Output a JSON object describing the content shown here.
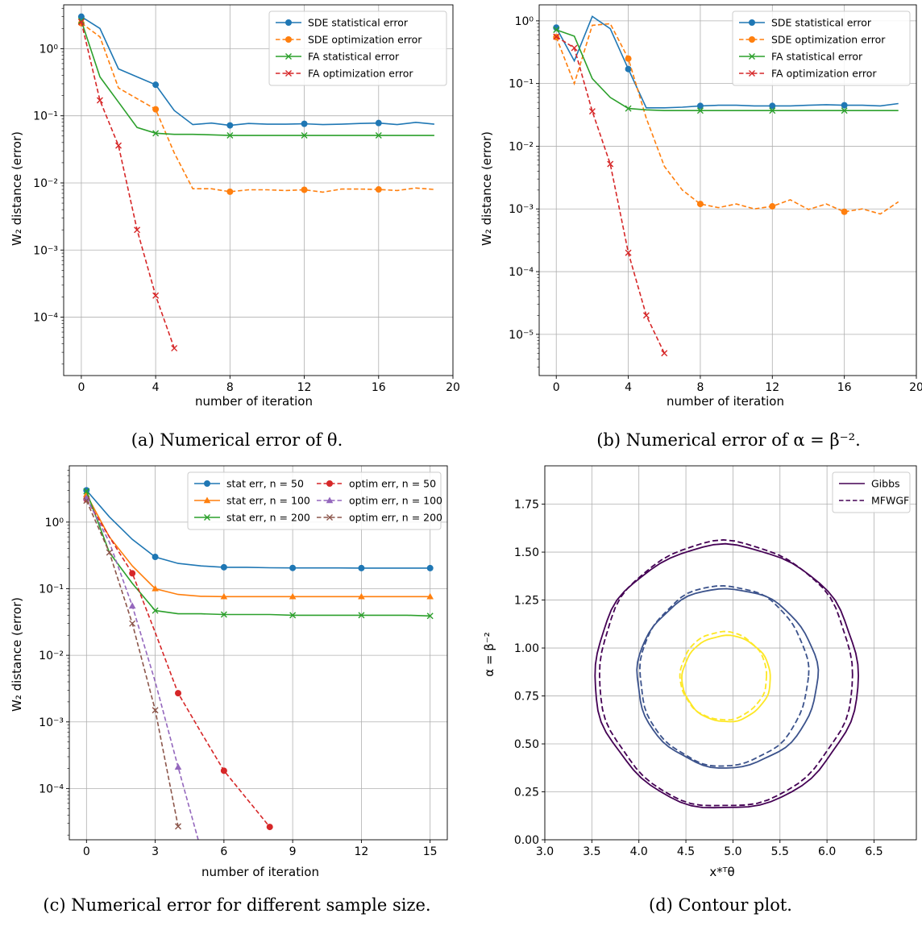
{
  "chart_data": [
    {
      "id": "a",
      "type": "line",
      "caption": "(a) Numerical error of θ.",
      "xlabel": "number of iteration",
      "ylabel": "W₂ distance (error)",
      "yscale": "log",
      "xlim": [
        -0.95,
        20
      ],
      "ylim": [
        1.35e-05,
        4.5
      ],
      "xticks": [
        0,
        4,
        8,
        12,
        16,
        20
      ],
      "yticks": [
        {
          "value": 0.0001,
          "label": "10⁻⁴"
        },
        {
          "value": 0.001,
          "label": "10⁻³"
        },
        {
          "value": 0.01,
          "label": "10⁻²"
        },
        {
          "value": 0.1,
          "label": "10⁻¹"
        },
        {
          "value": 1,
          "label": "10⁰"
        }
      ],
      "grid": true,
      "legend": {
        "position": "top-right",
        "columns": 1
      },
      "series": [
        {
          "name": "SDE statistical error",
          "color": "#1f77b4",
          "dash": "solid",
          "marker": "circle",
          "markevery": [
            0,
            4,
            8,
            12,
            16
          ],
          "x": [
            0,
            1,
            2,
            3,
            4,
            5,
            6,
            7,
            8,
            9,
            10,
            11,
            12,
            13,
            14,
            15,
            16,
            17,
            18,
            19
          ],
          "y": [
            3.0,
            2.0,
            0.5,
            0.38,
            0.29,
            0.12,
            0.074,
            0.078,
            0.072,
            0.077,
            0.075,
            0.075,
            0.076,
            0.074,
            0.075,
            0.077,
            0.078,
            0.074,
            0.08,
            0.075
          ]
        },
        {
          "name": "SDE optimization error",
          "color": "#ff7f0e",
          "dash": "dashed",
          "marker": "circle",
          "markevery": [
            0,
            4,
            8,
            12,
            16
          ],
          "x": [
            0,
            1,
            2,
            3,
            4,
            5,
            6,
            7,
            8,
            9,
            10,
            11,
            12,
            13,
            14,
            15,
            16,
            17,
            18,
            19
          ],
          "y": [
            2.4,
            1.5,
            0.26,
            0.18,
            0.125,
            0.028,
            0.0082,
            0.0082,
            0.0074,
            0.0079,
            0.0079,
            0.0077,
            0.0079,
            0.0073,
            0.0081,
            0.0081,
            0.008,
            0.0077,
            0.0084,
            0.008
          ]
        },
        {
          "name": "FA statistical error",
          "color": "#2ca02c",
          "dash": "solid",
          "marker": "x",
          "markevery": [
            0,
            4,
            8,
            12,
            16
          ],
          "x": [
            0,
            1,
            2,
            3,
            4,
            5,
            6,
            7,
            8,
            9,
            10,
            11,
            12,
            13,
            14,
            15,
            16,
            17,
            18,
            19
          ],
          "y": [
            2.6,
            0.38,
            0.16,
            0.067,
            0.055,
            0.053,
            0.053,
            0.052,
            0.051,
            0.051,
            0.051,
            0.051,
            0.051,
            0.051,
            0.051,
            0.051,
            0.051,
            0.051,
            0.051,
            0.051
          ]
        },
        {
          "name": "FA optimization error",
          "color": "#d62728",
          "dash": "dashed",
          "marker": "x",
          "markevery": "all",
          "x": [
            0,
            1,
            2,
            3,
            4,
            5
          ],
          "y": [
            2.5,
            0.17,
            0.036,
            0.002,
            0.00021,
            3.45e-05
          ]
        }
      ]
    },
    {
      "id": "b",
      "type": "line",
      "caption": "(b) Numerical error of α = β⁻².",
      "xlabel": "number of iteration",
      "ylabel": "W₂ distance (error)",
      "yscale": "log",
      "xlim": [
        -0.95,
        20
      ],
      "ylim": [
        2.2e-06,
        1.8
      ],
      "xticks": [
        0,
        4,
        8,
        12,
        16,
        20
      ],
      "yticks": [
        {
          "value": 1e-05,
          "label": "10⁻⁵"
        },
        {
          "value": 0.0001,
          "label": "10⁻⁴"
        },
        {
          "value": 0.001,
          "label": "10⁻³"
        },
        {
          "value": 0.01,
          "label": "10⁻²"
        },
        {
          "value": 0.1,
          "label": "10⁻¹"
        },
        {
          "value": 1,
          "label": "10⁰"
        }
      ],
      "grid": true,
      "legend": {
        "position": "top-right",
        "columns": 1
      },
      "series": [
        {
          "name": "SDE statistical error",
          "color": "#1f77b4",
          "dash": "solid",
          "marker": "circle",
          "markevery": [
            0,
            4,
            8,
            12,
            16
          ],
          "x": [
            0,
            1,
            2,
            3,
            4,
            5,
            6,
            7,
            8,
            9,
            10,
            11,
            12,
            13,
            14,
            15,
            16,
            17,
            18,
            19
          ],
          "y": [
            0.78,
            0.23,
            1.18,
            0.75,
            0.17,
            0.041,
            0.041,
            0.042,
            0.044,
            0.045,
            0.045,
            0.044,
            0.044,
            0.044,
            0.045,
            0.046,
            0.045,
            0.045,
            0.044,
            0.048
          ]
        },
        {
          "name": "SDE optimization error",
          "color": "#ff7f0e",
          "dash": "dashed",
          "marker": "circle",
          "markevery": [
            0,
            4,
            8,
            12,
            16
          ],
          "x": [
            0,
            1,
            2,
            3,
            4,
            5,
            6,
            7,
            8,
            9,
            10,
            11,
            12,
            13,
            14,
            15,
            16,
            17,
            18,
            19
          ],
          "y": [
            0.55,
            0.1,
            0.85,
            0.9,
            0.25,
            0.028,
            0.0048,
            0.002,
            0.0012,
            0.00105,
            0.0012,
            0.001,
            0.0011,
            0.0014,
            0.00098,
            0.0012,
            0.0009,
            0.001,
            0.00083,
            0.0013
          ]
        },
        {
          "name": "FA statistical error",
          "color": "#2ca02c",
          "dash": "solid",
          "marker": "x",
          "markevery": [
            0,
            4,
            8,
            12,
            16
          ],
          "x": [
            0,
            1,
            2,
            3,
            4,
            5,
            6,
            7,
            8,
            9,
            10,
            11,
            12,
            13,
            14,
            15,
            16,
            17,
            18,
            19
          ],
          "y": [
            0.72,
            0.57,
            0.12,
            0.06,
            0.04,
            0.038,
            0.037,
            0.037,
            0.037,
            0.037,
            0.037,
            0.037,
            0.037,
            0.037,
            0.037,
            0.037,
            0.037,
            0.037,
            0.037,
            0.037
          ]
        },
        {
          "name": "FA optimization error",
          "color": "#d62728",
          "dash": "dashed",
          "marker": "x",
          "markevery": "all",
          "x": [
            0,
            1,
            2,
            3,
            4,
            5,
            6
          ],
          "y": [
            0.56,
            0.37,
            0.036,
            0.0052,
            0.0002,
            2e-05,
            5e-06
          ]
        }
      ]
    },
    {
      "id": "c",
      "type": "line",
      "caption": "(c) Numerical error for different sample size.",
      "xlabel": "number of iteration",
      "ylabel": "W₂ distance (error)",
      "yscale": "log",
      "xlim": [
        -0.75,
        15.75
      ],
      "ylim": [
        1.7e-05,
        7
      ],
      "xticks": [
        0,
        3,
        6,
        9,
        12,
        15
      ],
      "yticks": [
        {
          "value": 0.0001,
          "label": "10⁻⁴"
        },
        {
          "value": 0.001,
          "label": "10⁻³"
        },
        {
          "value": 0.01,
          "label": "10⁻²"
        },
        {
          "value": 0.1,
          "label": "10⁻¹"
        },
        {
          "value": 1,
          "label": "10⁰"
        }
      ],
      "grid": true,
      "legend": {
        "position": "top-right",
        "columns": 2
      },
      "series": [
        {
          "name": "stat err, n = 50",
          "legend_prefix": "stat err, ",
          "legend_math": "n = 50",
          "color": "#1f77b4",
          "dash": "solid",
          "marker": "circle",
          "markevery": [
            0,
            3,
            6,
            9,
            12,
            15
          ],
          "x": [
            0,
            1,
            2,
            3,
            4,
            5,
            6,
            7,
            8,
            9,
            10,
            11,
            12,
            13,
            14,
            15
          ],
          "y": [
            3.0,
            1.2,
            0.55,
            0.3,
            0.24,
            0.22,
            0.21,
            0.21,
            0.206,
            0.205,
            0.205,
            0.205,
            0.204,
            0.204,
            0.204,
            0.204
          ]
        },
        {
          "name": "stat err, n = 100",
          "legend_prefix": "stat err, ",
          "legend_math": "n = 100",
          "color": "#ff7f0e",
          "dash": "solid",
          "marker": "triangle",
          "markevery": [
            0,
            3,
            6,
            9,
            12,
            15
          ],
          "x": [
            0,
            1,
            2,
            3,
            4,
            5,
            6,
            7,
            8,
            9,
            10,
            11,
            12,
            13,
            14,
            15
          ],
          "y": [
            2.6,
            0.6,
            0.22,
            0.1,
            0.082,
            0.077,
            0.076,
            0.076,
            0.076,
            0.076,
            0.076,
            0.076,
            0.076,
            0.076,
            0.076,
            0.076
          ]
        },
        {
          "name": "stat err, n = 200",
          "legend_prefix": "stat err, ",
          "legend_math": "n = 200",
          "color": "#2ca02c",
          "dash": "solid",
          "marker": "x",
          "markevery": [
            0,
            3,
            6,
            9,
            12,
            15
          ],
          "x": [
            0,
            1,
            2,
            3,
            4,
            5,
            6,
            7,
            8,
            9,
            10,
            11,
            12,
            13,
            14,
            15
          ],
          "y": [
            2.9,
            0.35,
            0.12,
            0.047,
            0.042,
            0.042,
            0.041,
            0.041,
            0.041,
            0.04,
            0.04,
            0.04,
            0.04,
            0.04,
            0.04,
            0.039
          ]
        },
        {
          "name": "optim err, n = 50",
          "legend_prefix": "optim err, ",
          "legend_math": "n = 50",
          "color": "#d62728",
          "dash": "dashed",
          "marker": "circle",
          "markevery": [
            0,
            2,
            4,
            6,
            8
          ],
          "x": [
            0,
            1,
            2,
            3,
            4,
            5,
            6,
            7,
            8
          ],
          "y": [
            2.2,
            0.6,
            0.17,
            0.022,
            0.0027,
            0.0007,
            0.000185,
            7e-05,
            2.65e-05
          ]
        },
        {
          "name": "optim err, n = 100",
          "legend_prefix": "optim err, ",
          "legend_math": "n = 100",
          "color": "#9467bd",
          "dash": "dashed",
          "marker": "triangle",
          "markevery": [
            0,
            2,
            4
          ],
          "x": [
            0,
            1,
            2,
            3,
            4,
            5
          ],
          "y": [
            2.3,
            0.5,
            0.055,
            0.004,
            0.00021,
            1.2e-05
          ]
        },
        {
          "name": "optim err, n = 200",
          "legend_prefix": "optim err, ",
          "legend_math": "n = 200",
          "color": "#8c564b",
          "dash": "dashed",
          "marker": "x",
          "markevery": "all",
          "x": [
            0,
            1,
            2,
            3,
            4
          ],
          "y": [
            2.1,
            0.35,
            0.03,
            0.0015,
            2.7e-05
          ]
        }
      ]
    },
    {
      "id": "d",
      "type": "contour",
      "caption": "(d) Contour plot.",
      "xlabel": "x*ᵀθ",
      "ylabel": "α = β⁻²",
      "yscale": "linear",
      "xlim": [
        3.0,
        6.95
      ],
      "ylim": [
        0.0,
        1.95
      ],
      "xticks": [
        3.0,
        3.5,
        4.0,
        4.5,
        5.0,
        5.5,
        6.0,
        6.5
      ],
      "yticks": [
        0.0,
        0.25,
        0.5,
        0.75,
        1.0,
        1.25,
        1.5,
        1.75
      ],
      "grid": true,
      "legend": {
        "position": "top-right",
        "columns": 1,
        "entries": [
          {
            "name": "Gibbs",
            "dash": "solid",
            "color": "#440154"
          },
          {
            "name": "MFWGF",
            "dash": "dashed",
            "color": "#440154"
          }
        ]
      },
      "contours": [
        {
          "method": "Gibbs",
          "level": "outer",
          "color": "#440154",
          "dash": "solid",
          "cx": 4.92,
          "cy": 0.855,
          "top": 1.535,
          "bottom": 0.16,
          "left": 3.53,
          "right": 6.33
        },
        {
          "method": "MFWGF",
          "level": "outer",
          "color": "#440154",
          "dash": "dashed",
          "cx": 4.9,
          "cy": 0.86,
          "top": 1.555,
          "bottom": 0.17,
          "left": 3.58,
          "right": 6.27
        },
        {
          "method": "Gibbs",
          "level": "middle",
          "color": "#3b528b",
          "dash": "solid",
          "cx": 4.93,
          "cy": 0.845,
          "top": 1.31,
          "bottom": 0.375,
          "left": 3.98,
          "right": 5.9
        },
        {
          "method": "MFWGF",
          "level": "middle",
          "color": "#3b528b",
          "dash": "dashed",
          "cx": 4.9,
          "cy": 0.855,
          "top": 1.325,
          "bottom": 0.385,
          "left": 4.01,
          "right": 5.8
        },
        {
          "method": "Gibbs",
          "level": "inner",
          "color": "#fde725",
          "dash": "solid",
          "cx": 4.93,
          "cy": 0.84,
          "top": 1.065,
          "bottom": 0.615,
          "left": 4.46,
          "right": 5.4
        },
        {
          "method": "MFWGF",
          "level": "inner",
          "color": "#fde725",
          "dash": "dashed",
          "cx": 4.9,
          "cy": 0.85,
          "top": 1.085,
          "bottom": 0.625,
          "left": 4.44,
          "right": 5.36
        }
      ]
    }
  ]
}
